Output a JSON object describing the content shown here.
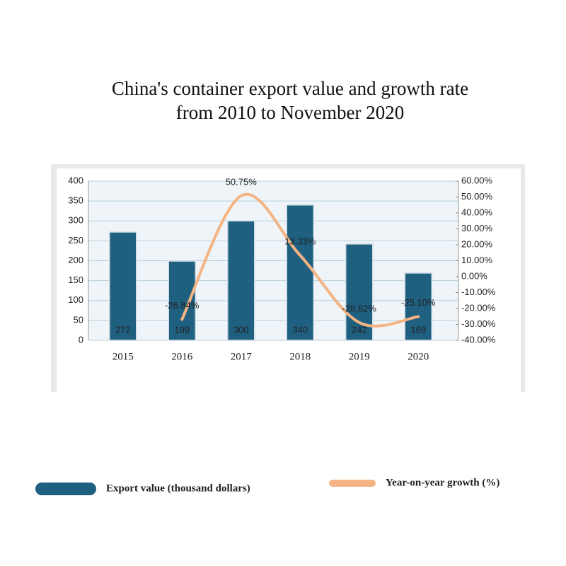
{
  "chart_data": {
    "type": "combo",
    "title": "China's container export value and growth rate from 2010 to November 2020",
    "categories": [
      "2015",
      "2016",
      "2017",
      "2018",
      "2019",
      "2020"
    ],
    "series": [
      {
        "name": "Export value (thousand dollars)",
        "type": "bar",
        "color": "#1f5f80",
        "values": [
          272,
          199,
          300,
          340,
          242,
          169
        ]
      },
      {
        "name": "Year-on-year growth (%)",
        "type": "line",
        "axis": "y2",
        "color": "#f4b483",
        "values": [
          null,
          -26.84,
          50.75,
          13.33,
          -28.82,
          -25.1
        ],
        "value_labels": [
          null,
          "-26.84%",
          "50.75%",
          "13.33%",
          "-28.82%",
          "-25.10%"
        ]
      }
    ],
    "ylim": [
      0,
      400
    ],
    "yticks": [
      0,
      50,
      100,
      150,
      200,
      250,
      300,
      350,
      400
    ],
    "y2lim": [
      -40,
      60
    ],
    "y2ticks": [
      {
        "value": -40,
        "label": "-40.00%"
      },
      {
        "value": -30,
        "label": "-30.00%"
      },
      {
        "value": -20,
        "label": "-20.00%"
      },
      {
        "value": -10,
        "label": "-10.00%"
      },
      {
        "value": 0,
        "label": "0.00%"
      },
      {
        "value": 10,
        "label": "10.00%"
      },
      {
        "value": 20,
        "label": "20.00%"
      },
      {
        "value": 30,
        "label": "30.00%"
      },
      {
        "value": 40,
        "label": "40.00%"
      },
      {
        "value": 50,
        "label": "50.00%"
      },
      {
        "value": 60,
        "label": "60.00%"
      }
    ],
    "grid": true
  }
}
